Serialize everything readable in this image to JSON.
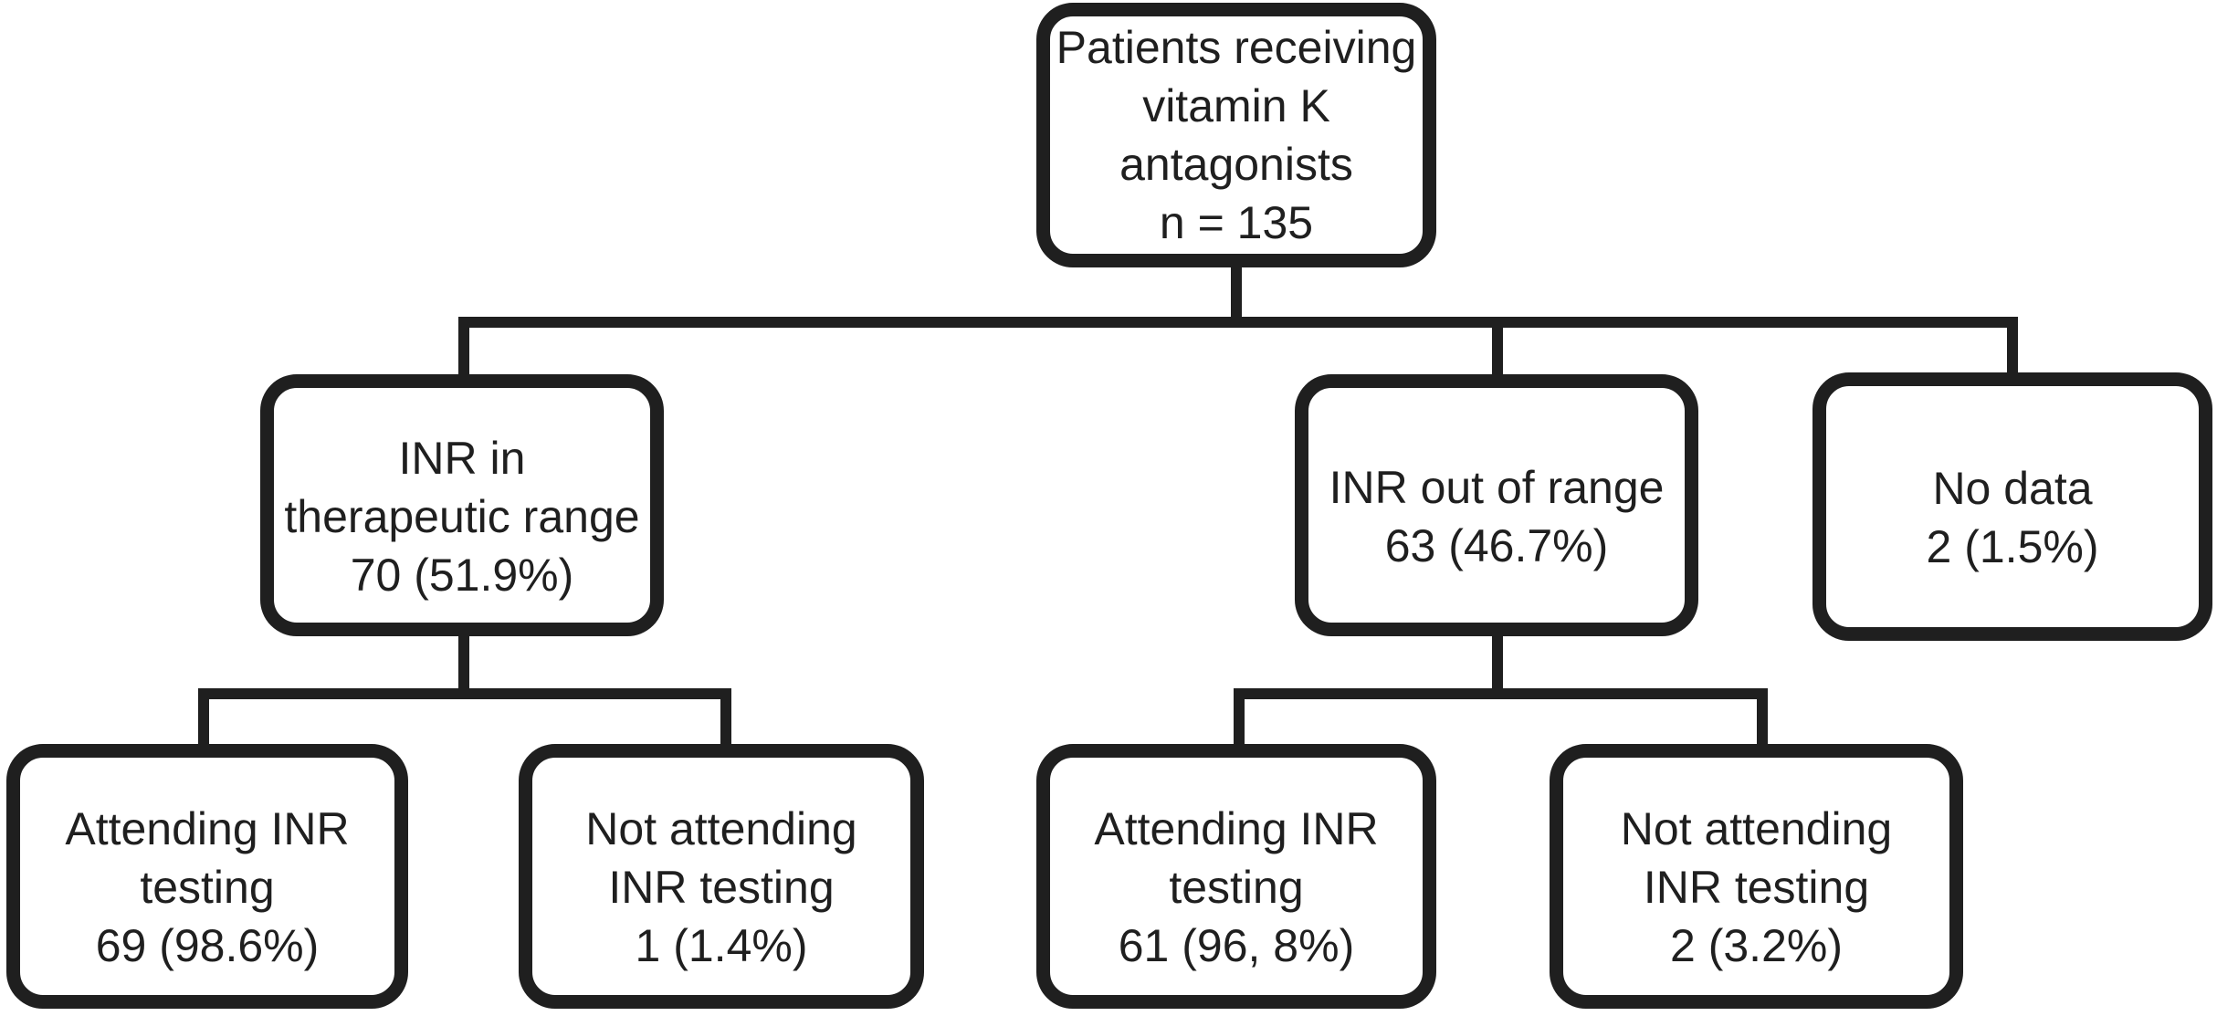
{
  "colors": {
    "background": "#ffffff",
    "line": "#1f1f1f",
    "text": "#1f1f1f"
  },
  "diagram": {
    "type": "flowchart",
    "nodes": {
      "root": {
        "id": "root",
        "lines": [
          "Patients receiving",
          "vitamin K",
          "antagonists",
          "n = 135"
        ],
        "count": 135
      },
      "inr_in_range": {
        "id": "inr_in_range",
        "lines": [
          "INR in",
          "therapeutic range",
          "70 (51.9%)"
        ],
        "count": 70,
        "percent": "51.9%"
      },
      "inr_out_of_range": {
        "id": "inr_out_of_range",
        "lines": [
          "INR out of range",
          "63 (46.7%)"
        ],
        "count": 63,
        "percent": "46.7%"
      },
      "no_data": {
        "id": "no_data",
        "lines": [
          "No data",
          "2 (1.5%)"
        ],
        "count": 2,
        "percent": "1.5%"
      },
      "in_range_attending": {
        "id": "in_range_attending",
        "lines": [
          "Attending INR",
          "testing",
          "69 (98.6%)"
        ],
        "count": 69,
        "percent": "98.6%"
      },
      "in_range_not_attending": {
        "id": "in_range_not_attending",
        "lines": [
          "Not attending",
          "INR testing",
          "1 (1.4%)"
        ],
        "count": 1,
        "percent": "1.4%"
      },
      "out_range_attending": {
        "id": "out_range_attending",
        "lines": [
          "Attending INR",
          "testing",
          "61 (96, 8%)"
        ],
        "count": 61,
        "percent": "96, 8%"
      },
      "out_range_not_attending": {
        "id": "out_range_not_attending",
        "lines": [
          "Not attending",
          "INR testing",
          "2 (3.2%)"
        ],
        "count": 2,
        "percent": "3.2%"
      }
    },
    "edges": [
      {
        "from": "root",
        "to": "inr_in_range"
      },
      {
        "from": "root",
        "to": "inr_out_of_range"
      },
      {
        "from": "root",
        "to": "no_data"
      },
      {
        "from": "inr_in_range",
        "to": "in_range_attending"
      },
      {
        "from": "inr_in_range",
        "to": "in_range_not_attending"
      },
      {
        "from": "inr_out_of_range",
        "to": "out_range_attending"
      },
      {
        "from": "inr_out_of_range",
        "to": "out_range_not_attending"
      }
    ]
  }
}
